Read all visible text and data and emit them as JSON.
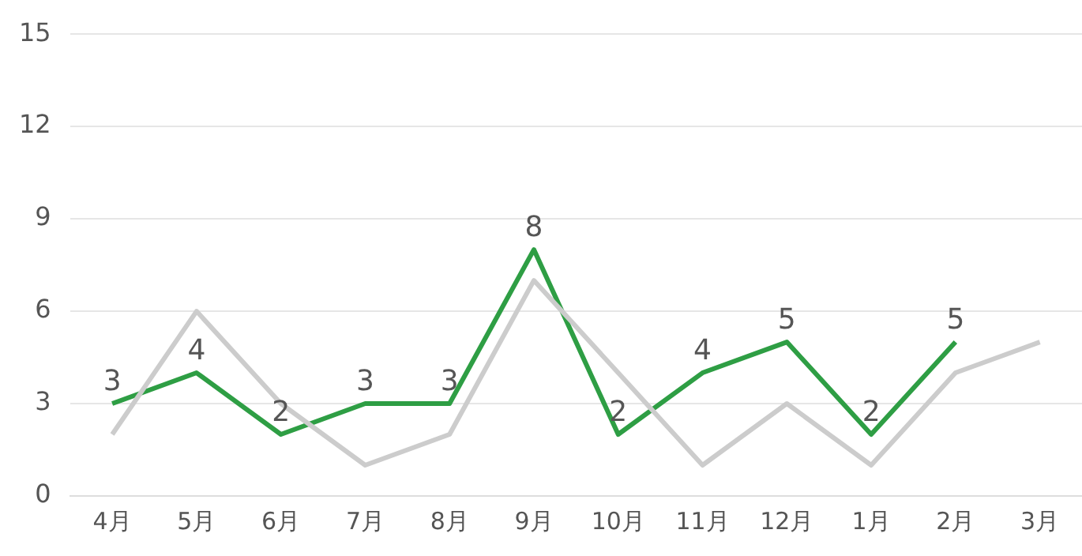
{
  "chart_data": {
    "type": "line",
    "categories": [
      "4月",
      "5月",
      "6月",
      "7月",
      "8月",
      "9月",
      "10月",
      "11月",
      "12月",
      "1月",
      "2月",
      "3月"
    ],
    "series": [
      {
        "color": "#cccccc",
        "values": [
          2,
          6,
          3,
          1,
          2,
          7,
          4,
          1,
          3,
          1,
          4,
          5
        ]
      },
      {
        "color": "#2e9e44",
        "values": [
          3,
          4,
          2,
          3,
          3,
          8,
          2,
          4,
          5,
          2,
          5,
          null
        ],
        "value_labels": [
          "3",
          "4",
          "2",
          "3",
          "3",
          "8",
          "2",
          "4",
          "5",
          "2",
          "5",
          null
        ]
      }
    ],
    "ylim": [
      0,
      15
    ],
    "yticks": [
      0,
      3,
      6,
      9,
      12,
      15
    ],
    "grid": "y",
    "legend": false,
    "marker": "none",
    "line_style": "solid"
  }
}
